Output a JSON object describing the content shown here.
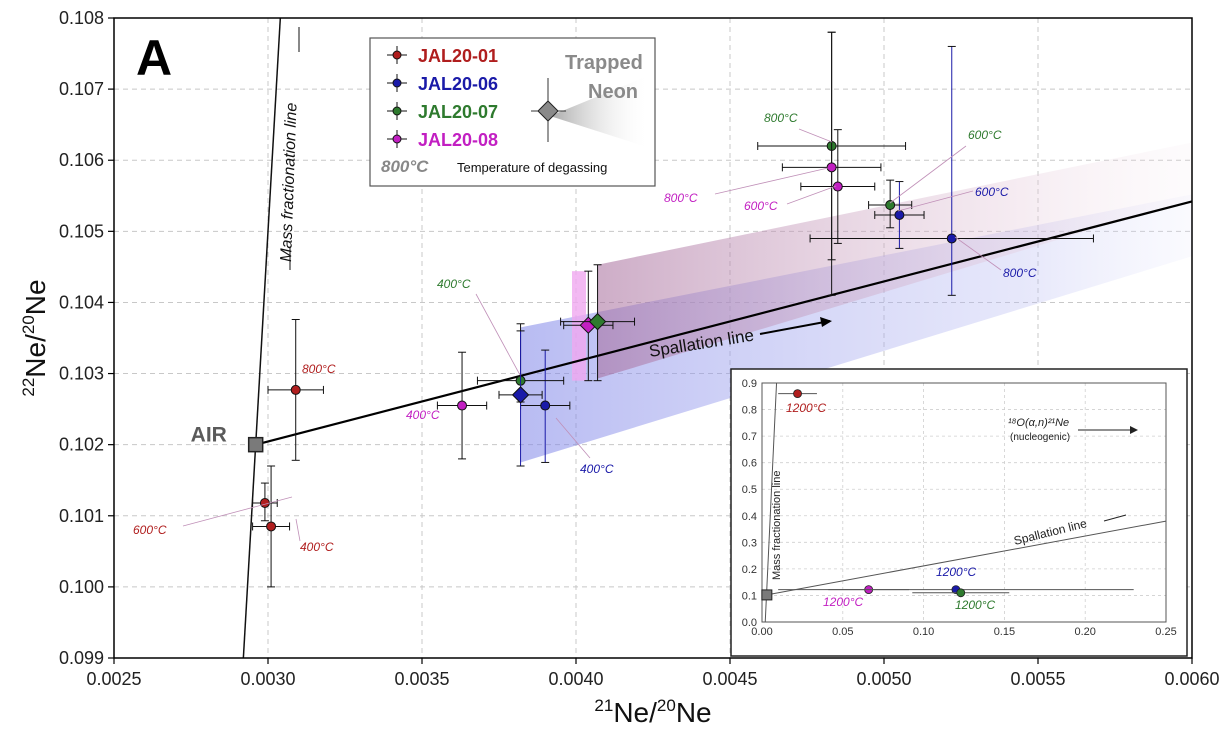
{
  "chart_data": {
    "type": "scatter",
    "panel_label": "A",
    "xlabel": {
      "base1": "21",
      "mid": "Ne/",
      "base2": "20",
      "end": "Ne"
    },
    "ylabel": {
      "base1": "22",
      "mid": "Ne/",
      "base2": "20",
      "end": "Ne"
    },
    "xlim": [
      0.0025,
      0.006
    ],
    "ylim": [
      0.099,
      0.108
    ],
    "x_ticks": [
      "0.0025",
      "0.0030",
      "0.0035",
      "0.0040",
      "0.0045",
      "0.0050",
      "0.0055",
      "0.0060"
    ],
    "y_ticks": [
      "0.099",
      "0.100",
      "0.101",
      "0.102",
      "0.103",
      "0.104",
      "0.105",
      "0.106",
      "0.107",
      "0.108"
    ],
    "grid": true,
    "colors": {
      "JAL20-01": "#b01e1e",
      "JAL20-06": "#1a1aa8",
      "JAL20-07": "#2e7a2e",
      "JAL20-08": "#c21fc2",
      "air": "#808080",
      "band": "#7f85e8"
    },
    "series": [
      {
        "name": "JAL20-01",
        "points": [
          {
            "temp": "400°C",
            "x": 0.00301,
            "y": 0.10085,
            "xerr": 6e-05,
            "ylo": 0.1,
            "yhi": 0.1017
          },
          {
            "temp": "600°C",
            "x": 0.00299,
            "y": 0.10118,
            "xerr": 4e-05,
            "ylo": 0.10093,
            "yhi": 0.10146
          },
          {
            "temp": "800°C",
            "x": 0.00309,
            "y": 0.10277,
            "xerr": 9e-05,
            "ylo": 0.10178,
            "yhi": 0.10376
          }
        ]
      },
      {
        "name": "JAL20-06",
        "points": [
          {
            "temp": "400°C",
            "x": 0.0039,
            "y": 0.10255,
            "xerr": 8e-05,
            "ylo": 0.10175,
            "yhi": 0.10333
          },
          {
            "temp": "600°C",
            "x": 0.00505,
            "y": 0.10523,
            "xerr": 8e-05,
            "ylo": 0.10476,
            "yhi": 0.1057
          },
          {
            "temp": "800°C",
            "x": 0.00522,
            "y": 0.1049,
            "xerr": 0.00046,
            "ylo": 0.1041,
            "yhi": 0.1076
          }
        ]
      },
      {
        "name": "JAL20-07",
        "points": [
          {
            "temp": "400°C",
            "x": 0.00382,
            "y": 0.1029,
            "xerr": 0.00014,
            "ylo": 0.1026,
            "yhi": 0.1037
          },
          {
            "temp": "600°C",
            "x": 0.00502,
            "y": 0.10537,
            "xerr": 7e-05,
            "ylo": 0.10505,
            "yhi": 0.10572
          },
          {
            "temp": "800°C",
            "x": 0.00483,
            "y": 0.1062,
            "xerr": 0.00024,
            "ylo": 0.1046,
            "yhi": 0.1078
          }
        ]
      },
      {
        "name": "JAL20-08",
        "points": [
          {
            "temp": "400°C",
            "x": 0.00363,
            "y": 0.10255,
            "xerr": 8e-05,
            "ylo": 0.1018,
            "yhi": 0.1033
          },
          {
            "temp": "600°C",
            "x": 0.00485,
            "y": 0.10563,
            "xerr": 0.00012,
            "ylo": 0.10483,
            "yhi": 0.10643
          },
          {
            "temp": "800°C",
            "x": 0.00483,
            "y": 0.1059,
            "xerr": 0.00016,
            "ylo": 0.1041,
            "yhi": 0.1078
          }
        ]
      }
    ],
    "trapped_neon": [
      {
        "series": "JAL20-06",
        "x": 0.00382,
        "y": 0.1027,
        "xerr": 7e-05,
        "ylo": 0.1017,
        "yhi": 0.1036
      },
      {
        "series": "JAL20-08",
        "x": 0.00404,
        "y": 0.10368,
        "xerr": 8e-05,
        "ylo": 0.1029,
        "yhi": 0.10444
      },
      {
        "series": "JAL20-07",
        "x": 0.00407,
        "y": 0.10373,
        "xerr": 0.00012,
        "ylo": 0.1029,
        "yhi": 0.10453
      }
    ],
    "air": {
      "label": "AIR",
      "x": 0.00296,
      "y": 0.102
    },
    "mass_fractionation_line": {
      "label": "Mass fractionation line",
      "x1": 0.00292,
      "y1": 0.099,
      "x2": 0.00304,
      "y2": 0.108
    },
    "spallation_line": {
      "label": "Spallation line",
      "x1": 0.00296,
      "y1": 0.102,
      "x2": 0.006,
      "y2": 0.10542
    },
    "legend": {
      "title": "Trapped Neon",
      "entries": [
        "JAL20-01",
        "JAL20-06",
        "JAL20-07",
        "JAL20-08"
      ],
      "temp_example": "800°C",
      "temp_caption": "Temperature of degassing"
    },
    "inset": {
      "xlim": [
        0,
        0.25
      ],
      "ylim": [
        0,
        0.9
      ],
      "x_ticks": [
        "0.00",
        "0.05",
        "0.10",
        "0.15",
        "0.20",
        "0.25"
      ],
      "y_ticks": [
        "0.0",
        "0.1",
        "0.2",
        "0.3",
        "0.4",
        "0.5",
        "0.6",
        "0.7",
        "0.8",
        "0.9"
      ],
      "points": [
        {
          "series": "JAL20-01",
          "temp": "1200°C",
          "x": 0.022,
          "y": 0.86,
          "xerr": 0.012
        },
        {
          "series": "JAL20-08",
          "temp": "1200°C",
          "x": 0.066,
          "y": 0.122,
          "xerr": 0.025
        },
        {
          "series": "JAL20-06",
          "temp": "1200°C",
          "x": 0.12,
          "y": 0.122,
          "xerr": 0.11
        },
        {
          "series": "JAL20-07",
          "temp": "1200°C",
          "x": 0.123,
          "y": 0.11,
          "xerr": 0.03
        }
      ],
      "air": {
        "x": 0.003,
        "y": 0.102
      },
      "mass_fractionation_label": "Mass fractionation line",
      "spallation_label": "Spallation line",
      "nucleogenic_label": "¹⁸O(α,n)²¹Ne",
      "nucleogenic_sub": "(nucleogenic)"
    }
  }
}
